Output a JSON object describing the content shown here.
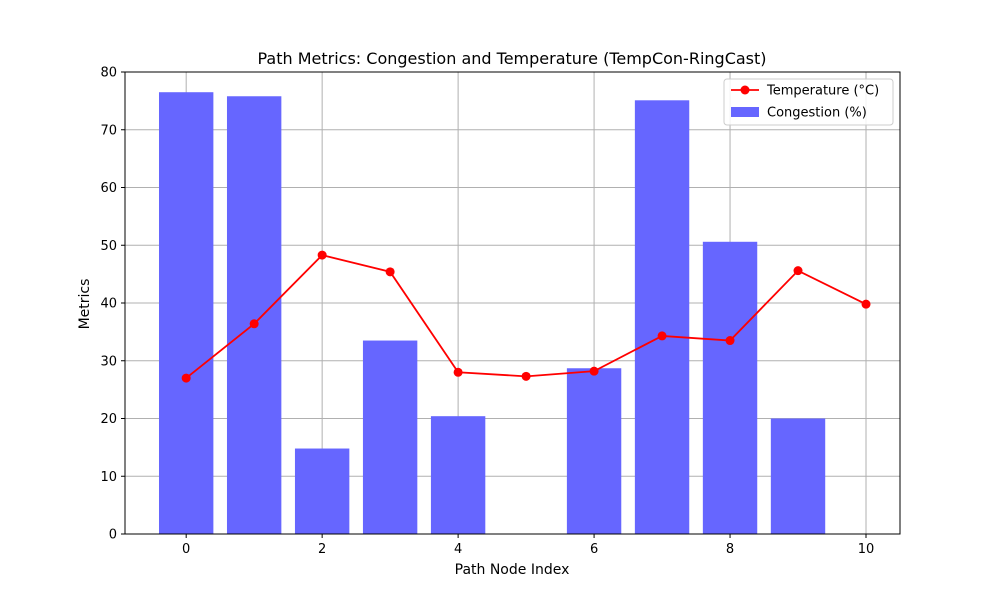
{
  "chart_data": {
    "type": "bar",
    "title": "Path Metrics: Congestion and Temperature (TempCon-RingCast)",
    "xlabel": "Path Node Index",
    "ylabel": "Metrics",
    "xlim": [
      -0.9,
      10.5
    ],
    "ylim": [
      0,
      80
    ],
    "x_ticks": [
      0,
      2,
      4,
      6,
      8,
      10
    ],
    "y_ticks": [
      0,
      10,
      20,
      30,
      40,
      50,
      60,
      70,
      80
    ],
    "grid": true,
    "legend_position": "top-right",
    "x": [
      0,
      1,
      2,
      3,
      4,
      5,
      6,
      7,
      8,
      9,
      10
    ],
    "series": [
      {
        "name": "Temperature (°C)",
        "type": "line",
        "color": "#ff0000",
        "marker": "circle",
        "values": [
          27.0,
          36.4,
          48.3,
          45.4,
          28.0,
          27.3,
          28.2,
          34.3,
          33.5,
          45.6,
          39.8
        ]
      },
      {
        "name": "Congestion (%)",
        "type": "bar",
        "color": "#6666ff",
        "values": [
          76.5,
          75.8,
          14.8,
          33.5,
          20.4,
          0.0,
          28.7,
          75.1,
          50.6,
          20.0,
          0.0
        ]
      }
    ]
  }
}
